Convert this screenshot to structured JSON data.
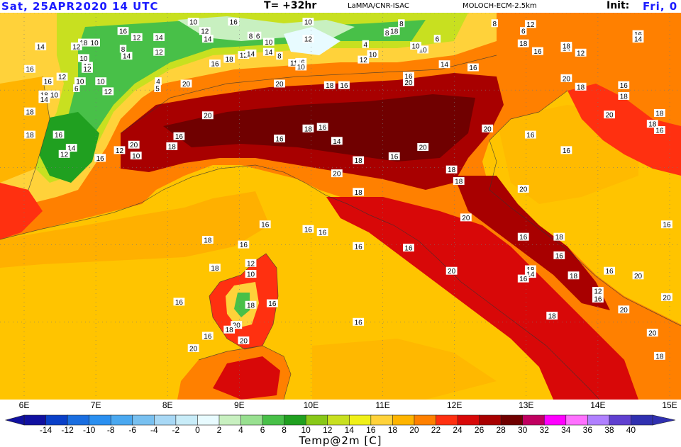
{
  "header": {
    "valid_time": "Sat, 25APR2020   14 UTC",
    "forecast_step": "T= +32hr",
    "producer": "LaMMA/CNR-ISAC",
    "model": "MOLOCH-ECM-2.5km",
    "init_label": "Init:",
    "init_time": "Fri, 0"
  },
  "longitude_labels": [
    "6E",
    "7E",
    "8E",
    "9E",
    "10E",
    "11E",
    "12E",
    "13E",
    "14E",
    "15E"
  ],
  "legend": {
    "title": "Temp@2m [C]",
    "labels": [
      "-14",
      "-12",
      "-10",
      "-8",
      "-6",
      "-4",
      "-2",
      "0",
      "2",
      "4",
      "6",
      "8",
      "10",
      "12",
      "14",
      "16",
      "18",
      "20",
      "22",
      "24",
      "26",
      "28",
      "30",
      "32",
      "34",
      "36",
      "38",
      "40"
    ],
    "colors": [
      "#1010a0",
      "#0a40c8",
      "#1a6ee0",
      "#2a8ff0",
      "#4aa8f0",
      "#78c0f0",
      "#a8d8f5",
      "#c8ecf8",
      "#e8fbff",
      "#c8f0c0",
      "#98e090",
      "#48c048",
      "#20a020",
      "#88c818",
      "#c8e020",
      "#f0f018",
      "#ffd23a",
      "#ffb400",
      "#ff8000",
      "#ff3010",
      "#d80808",
      "#a80000",
      "#700000",
      "#c00060",
      "#ff00ff",
      "#ff70ff",
      "#b080ff",
      "#6040d0",
      "#3030b0"
    ],
    "color_accent_sea": "#ffc400"
  },
  "isotherm_labels": [
    {
      "v": "10",
      "lon": 8.36,
      "lat": 45.88
    },
    {
      "v": "16",
      "lon": 7.38,
      "lat": 45.76
    },
    {
      "v": "12",
      "lon": 7.57,
      "lat": 45.68
    },
    {
      "v": "14",
      "lon": 7.88,
      "lat": 45.68
    },
    {
      "v": "18",
      "lon": 6.83,
      "lat": 45.61
    },
    {
      "v": "10",
      "lon": 6.98,
      "lat": 45.61
    },
    {
      "v": "14",
      "lon": 6.23,
      "lat": 45.56
    },
    {
      "v": "12",
      "lon": 6.73,
      "lat": 45.56
    },
    {
      "v": "8",
      "lon": 7.38,
      "lat": 45.53
    },
    {
      "v": "14",
      "lon": 7.43,
      "lat": 45.44
    },
    {
      "v": "12",
      "lon": 7.88,
      "lat": 45.49
    },
    {
      "v": "10",
      "lon": 6.83,
      "lat": 45.41
    },
    {
      "v": "10",
      "lon": 6.88,
      "lat": 45.31
    },
    {
      "v": "12",
      "lon": 6.88,
      "lat": 45.27
    },
    {
      "v": "16",
      "lon": 6.08,
      "lat": 45.27
    },
    {
      "v": "12",
      "lon": 6.53,
      "lat": 45.17
    },
    {
      "v": "16",
      "lon": 6.33,
      "lat": 45.11
    },
    {
      "v": "10",
      "lon": 6.78,
      "lat": 45.11
    },
    {
      "v": "10",
      "lon": 7.07,
      "lat": 45.11
    },
    {
      "v": "4",
      "lon": 7.87,
      "lat": 45.11
    },
    {
      "v": "6",
      "lon": 6.73,
      "lat": 45.02
    },
    {
      "v": "12",
      "lon": 7.17,
      "lat": 44.98
    },
    {
      "v": "5",
      "lon": 7.86,
      "lat": 45.02
    },
    {
      "v": "18",
      "lon": 6.28,
      "lat": 44.94
    },
    {
      "v": "10",
      "lon": 6.42,
      "lat": 44.94
    },
    {
      "v": "14",
      "lon": 6.28,
      "lat": 44.88
    },
    {
      "v": "20",
      "lon": 8.26,
      "lat": 45.08
    },
    {
      "v": "16",
      "lon": 8.92,
      "lat": 45.88
    },
    {
      "v": "12",
      "lon": 8.52,
      "lat": 45.76
    },
    {
      "v": "14",
      "lon": 8.56,
      "lat": 45.66
    },
    {
      "v": "8",
      "lon": 9.16,
      "lat": 45.7
    },
    {
      "v": "6",
      "lon": 9.26,
      "lat": 45.7
    },
    {
      "v": "10",
      "lon": 9.96,
      "lat": 45.88
    },
    {
      "v": "10",
      "lon": 9.41,
      "lat": 45.62
    },
    {
      "v": "14",
      "lon": 9.41,
      "lat": 45.49
    },
    {
      "v": "12",
      "lon": 9.96,
      "lat": 45.66
    },
    {
      "v": "4",
      "lon": 10.76,
      "lat": 45.59
    },
    {
      "v": "10",
      "lon": 10.86,
      "lat": 45.46
    },
    {
      "v": "12",
      "lon": 10.73,
      "lat": 45.39
    },
    {
      "v": "10",
      "lon": 11.56,
      "lat": 45.52
    },
    {
      "v": "8",
      "lon": 9.56,
      "lat": 45.44
    },
    {
      "v": "16",
      "lon": 9.86,
      "lat": 45.36
    },
    {
      "v": "11",
      "lon": 9.76,
      "lat": 45.35
    },
    {
      "v": "10",
      "lon": 9.86,
      "lat": 45.3
    },
    {
      "v": "12",
      "lon": 9.06,
      "lat": 45.45
    },
    {
      "v": "14",
      "lon": 9.16,
      "lat": 45.47
    },
    {
      "v": "18",
      "lon": 8.86,
      "lat": 45.4
    },
    {
      "v": "16",
      "lon": 8.66,
      "lat": 45.34
    },
    {
      "v": "20",
      "lon": 9.56,
      "lat": 45.08
    },
    {
      "v": "18",
      "lon": 10.26,
      "lat": 45.06
    },
    {
      "v": "16",
      "lon": 10.46,
      "lat": 45.06
    },
    {
      "v": "20",
      "lon": 11.36,
      "lat": 45.1
    },
    {
      "v": "16",
      "lon": 11.36,
      "lat": 45.18
    },
    {
      "v": "14",
      "lon": 11.86,
      "lat": 45.33
    },
    {
      "v": "16",
      "lon": 12.26,
      "lat": 45.29
    },
    {
      "v": "8",
      "lon": 11.26,
      "lat": 45.86
    },
    {
      "v": "18",
      "lon": 11.16,
      "lat": 45.76
    },
    {
      "v": "10",
      "lon": 11.46,
      "lat": 45.57
    },
    {
      "v": "6",
      "lon": 11.76,
      "lat": 45.66
    },
    {
      "v": "8",
      "lon": 11.06,
      "lat": 45.74
    },
    {
      "v": "6",
      "lon": 12.96,
      "lat": 45.76
    },
    {
      "v": "8",
      "lon": 12.56,
      "lat": 45.86
    },
    {
      "v": "12",
      "lon": 13.06,
      "lat": 45.85
    },
    {
      "v": "12",
      "lon": 13.76,
      "lat": 45.48
    },
    {
      "v": "14",
      "lon": 13.56,
      "lat": 45.54
    },
    {
      "v": "16",
      "lon": 13.16,
      "lat": 45.5
    },
    {
      "v": "18",
      "lon": 13.56,
      "lat": 45.57
    },
    {
      "v": "18",
      "lon": 13.86,
      "lat": 45.96
    },
    {
      "v": "16",
      "lon": 14.56,
      "lat": 45.72
    },
    {
      "v": "14",
      "lon": 14.56,
      "lat": 45.66
    },
    {
      "v": "18",
      "lon": 12.96,
      "lat": 45.6
    },
    {
      "v": "20",
      "lon": 13.56,
      "lat": 45.15
    },
    {
      "v": "18",
      "lon": 13.76,
      "lat": 45.04
    },
    {
      "v": "16",
      "lon": 14.36,
      "lat": 45.06
    },
    {
      "v": "18",
      "lon": 14.36,
      "lat": 44.92
    },
    {
      "v": "20",
      "lon": 14.16,
      "lat": 44.68
    },
    {
      "v": "16",
      "lon": 14.86,
      "lat": 44.48
    },
    {
      "v": "18",
      "lon": 14.76,
      "lat": 44.56
    },
    {
      "v": "18",
      "lon": 14.86,
      "lat": 44.7
    },
    {
      "v": "16",
      "lon": 13.06,
      "lat": 44.42
    },
    {
      "v": "16",
      "lon": 13.56,
      "lat": 44.22
    },
    {
      "v": "20",
      "lon": 12.46,
      "lat": 44.5
    },
    {
      "v": "18",
      "lon": 6.08,
      "lat": 44.72
    },
    {
      "v": "18",
      "lon": 6.08,
      "lat": 44.42
    },
    {
      "v": "16",
      "lon": 6.48,
      "lat": 44.42
    },
    {
      "v": "14",
      "lon": 6.66,
      "lat": 44.25
    },
    {
      "v": "12",
      "lon": 6.56,
      "lat": 44.17
    },
    {
      "v": "20",
      "lon": 7.53,
      "lat": 44.29
    },
    {
      "v": "12",
      "lon": 7.33,
      "lat": 44.22
    },
    {
      "v": "10",
      "lon": 7.56,
      "lat": 44.15
    },
    {
      "v": "16",
      "lon": 7.06,
      "lat": 44.12
    },
    {
      "v": "18",
      "lon": 8.06,
      "lat": 44.27
    },
    {
      "v": "16",
      "lon": 8.16,
      "lat": 44.4
    },
    {
      "v": "20",
      "lon": 8.56,
      "lat": 44.67
    },
    {
      "v": "16",
      "lon": 9.56,
      "lat": 44.37
    },
    {
      "v": "18",
      "lon": 9.96,
      "lat": 44.5
    },
    {
      "v": "16",
      "lon": 10.16,
      "lat": 44.52
    },
    {
      "v": "14",
      "lon": 10.36,
      "lat": 44.34
    },
    {
      "v": "20",
      "lon": 11.56,
      "lat": 44.26
    },
    {
      "v": "16",
      "lon": 11.16,
      "lat": 44.14
    },
    {
      "v": "18",
      "lon": 10.66,
      "lat": 44.09
    },
    {
      "v": "18",
      "lon": 11.96,
      "lat": 43.97
    },
    {
      "v": "18",
      "lon": 12.06,
      "lat": 43.82
    },
    {
      "v": "20",
      "lon": 10.36,
      "lat": 43.92
    },
    {
      "v": "20",
      "lon": 12.96,
      "lat": 43.72
    },
    {
      "v": "20",
      "lon": 12.16,
      "lat": 43.35
    },
    {
      "v": "16",
      "lon": 12.96,
      "lat": 43.1
    },
    {
      "v": "18",
      "lon": 13.46,
      "lat": 43.1
    },
    {
      "v": "18",
      "lon": 13.06,
      "lat": 42.68
    },
    {
      "v": "16",
      "lon": 13.46,
      "lat": 42.86
    },
    {
      "v": "14",
      "lon": 13.06,
      "lat": 42.62
    },
    {
      "v": "16",
      "lon": 12.96,
      "lat": 42.56
    },
    {
      "v": "18",
      "lon": 13.66,
      "lat": 42.6
    },
    {
      "v": "20",
      "lon": 14.56,
      "lat": 42.6
    },
    {
      "v": "12",
      "lon": 14.0,
      "lat": 42.4
    },
    {
      "v": "16",
      "lon": 14.0,
      "lat": 42.3
    },
    {
      "v": "20",
      "lon": 14.36,
      "lat": 42.16
    },
    {
      "v": "20",
      "lon": 14.96,
      "lat": 42.32
    },
    {
      "v": "18",
      "lon": 13.36,
      "lat": 42.08
    },
    {
      "v": "20",
      "lon": 11.96,
      "lat": 42.66
    },
    {
      "v": "16",
      "lon": 11.36,
      "lat": 42.96
    },
    {
      "v": "16",
      "lon": 10.66,
      "lat": 42.98
    },
    {
      "v": "18",
      "lon": 10.66,
      "lat": 43.68
    },
    {
      "v": "16",
      "lon": 10.16,
      "lat": 43.16
    },
    {
      "v": "16",
      "lon": 9.96,
      "lat": 43.2
    },
    {
      "v": "16",
      "lon": 14.96,
      "lat": 43.26
    },
    {
      "v": "20",
      "lon": 14.76,
      "lat": 41.86
    },
    {
      "v": "18",
      "lon": 14.86,
      "lat": 41.56
    },
    {
      "v": "16",
      "lon": 14.16,
      "lat": 42.66
    },
    {
      "v": "18",
      "lon": 8.56,
      "lat": 43.06
    },
    {
      "v": "18",
      "lon": 8.66,
      "lat": 42.7
    },
    {
      "v": "16",
      "lon": 9.06,
      "lat": 43.0
    },
    {
      "v": "16",
      "lon": 9.36,
      "lat": 43.26
    },
    {
      "v": "12",
      "lon": 9.16,
      "lat": 42.76
    },
    {
      "v": "10",
      "lon": 9.16,
      "lat": 42.62
    },
    {
      "v": "16",
      "lon": 8.16,
      "lat": 42.26
    },
    {
      "v": "18",
      "lon": 9.16,
      "lat": 42.22
    },
    {
      "v": "16",
      "lon": 9.46,
      "lat": 42.24
    },
    {
      "v": "20",
      "lon": 8.96,
      "lat": 41.96
    },
    {
      "v": "18",
      "lon": 8.86,
      "lat": 41.9
    },
    {
      "v": "16",
      "lon": 8.56,
      "lat": 41.82
    },
    {
      "v": "20",
      "lon": 9.06,
      "lat": 41.76
    },
    {
      "v": "20",
      "lon": 8.36,
      "lat": 41.66
    },
    {
      "v": "16",
      "lon": 10.66,
      "lat": 42.0
    }
  ]
}
